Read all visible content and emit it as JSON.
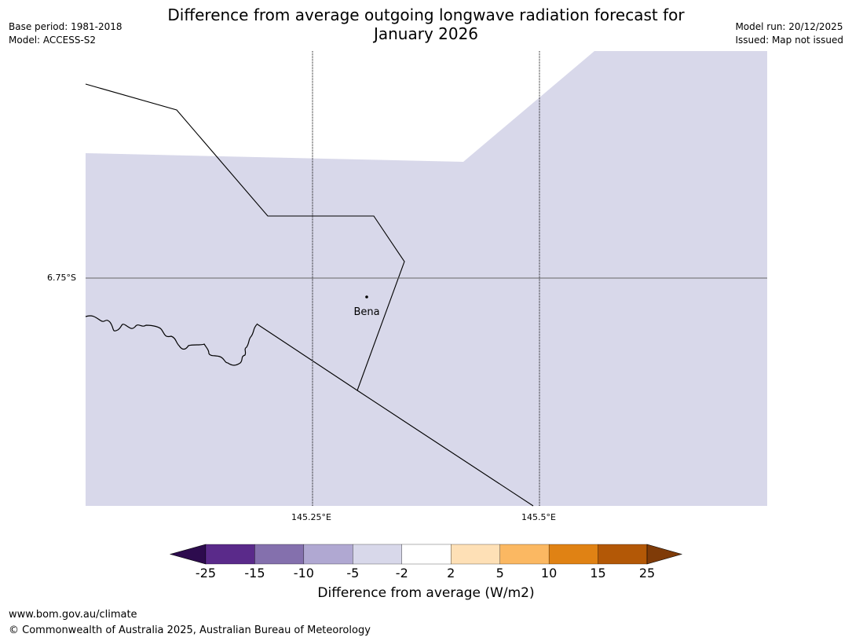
{
  "title": {
    "line1": "Difference from average outgoing longwave radiation forecast for",
    "line2": "January 2026"
  },
  "meta_left": {
    "base_period": "Base period: 1981-2018",
    "model": "Model: ACCESS-S2"
  },
  "meta_right": {
    "model_run": "Model run: 20/12/2025",
    "issued": "Issued: Map not issued"
  },
  "map": {
    "fill_color": "#d8d8ea",
    "latitude_label": "6.75°S",
    "longitude_labels": [
      "145.25°E",
      "145.5°E"
    ],
    "place_name": "Bena"
  },
  "colorbar": {
    "title": "Difference from average (W/m2)",
    "ticks": [
      "-25",
      "-15",
      "-10",
      "-5",
      "-2",
      "2",
      "5",
      "10",
      "15",
      "25"
    ],
    "colors": [
      "#2d0b4e",
      "#5a2a8a",
      "#8470ad",
      "#b0a8d2",
      "#d8d8ea",
      "#ffffff",
      "#fee0b6",
      "#fbb862",
      "#e08214",
      "#b35806",
      "#7f3b08"
    ]
  },
  "footer": {
    "url": "www.bom.gov.au/climate",
    "copyright": "© Commonwealth of Australia 2025, Australian Bureau of Meteorology"
  }
}
